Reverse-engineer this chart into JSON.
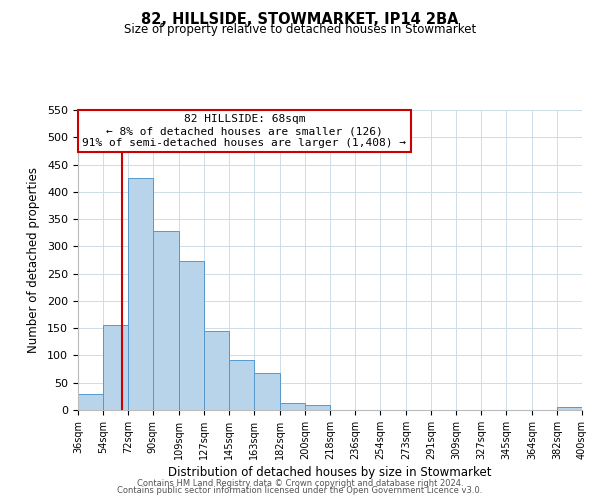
{
  "title": "82, HILLSIDE, STOWMARKET, IP14 2BA",
  "subtitle": "Size of property relative to detached houses in Stowmarket",
  "xlabel": "Distribution of detached houses by size in Stowmarket",
  "ylabel": "Number of detached properties",
  "bar_edges": [
    36,
    54,
    72,
    90,
    109,
    127,
    145,
    163,
    182,
    200,
    218,
    236,
    254,
    273,
    291,
    309,
    327,
    345,
    364,
    382,
    400
  ],
  "bar_heights": [
    30,
    155,
    425,
    328,
    273,
    145,
    91,
    68,
    13,
    10,
    0,
    0,
    0,
    0,
    0,
    0,
    0,
    0,
    0,
    5
  ],
  "bar_color": "#b8d4ea",
  "bar_edge_color": "#5599cc",
  "property_line_x": 68,
  "property_line_color": "#cc0000",
  "annotation_line1": "82 HILLSIDE: 68sqm",
  "annotation_line2": "← 8% of detached houses are smaller (126)",
  "annotation_line3": "91% of semi-detached houses are larger (1,408) →",
  "annotation_box_color": "#cc0000",
  "ylim": [
    0,
    550
  ],
  "yticks": [
    0,
    50,
    100,
    150,
    200,
    250,
    300,
    350,
    400,
    450,
    500,
    550
  ],
  "tick_labels": [
    "36sqm",
    "54sqm",
    "72sqm",
    "90sqm",
    "109sqm",
    "127sqm",
    "145sqm",
    "163sqm",
    "182sqm",
    "200sqm",
    "218sqm",
    "236sqm",
    "254sqm",
    "273sqm",
    "291sqm",
    "309sqm",
    "327sqm",
    "345sqm",
    "364sqm",
    "382sqm",
    "400sqm"
  ],
  "footer_line1": "Contains HM Land Registry data © Crown copyright and database right 2024.",
  "footer_line2": "Contains public sector information licensed under the Open Government Licence v3.0.",
  "background_color": "#ffffff",
  "grid_color": "#ccdde8"
}
